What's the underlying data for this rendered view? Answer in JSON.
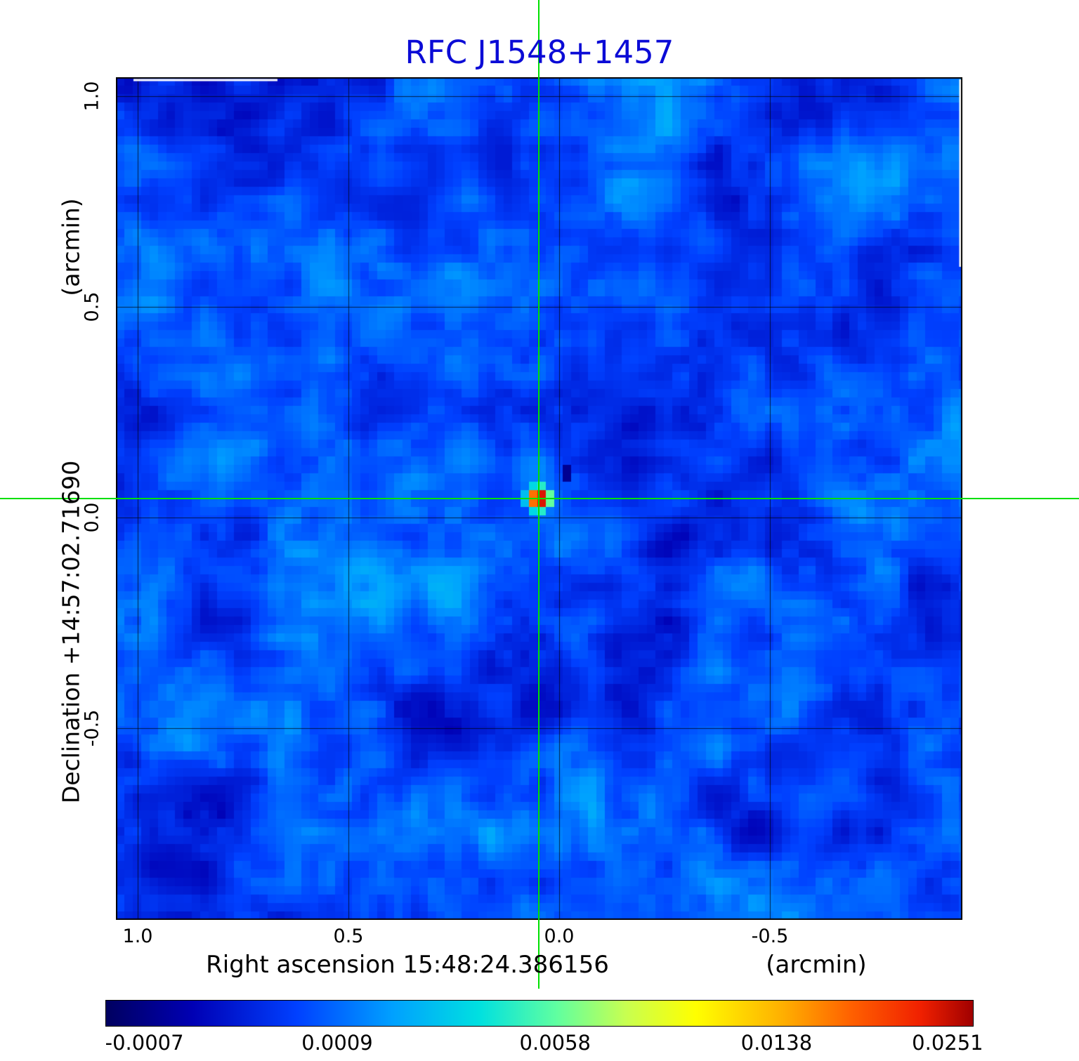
{
  "chart_data": {
    "type": "heatmap",
    "title": "RFC J1548+1457",
    "title_color": "#0b0bd6",
    "x_axis": {
      "label": "Right ascension  15:48:24.386156",
      "unit": "(arcmin)",
      "ticks": [
        "1.0",
        "0.5",
        "0.0",
        "-0.5"
      ],
      "range_arcmin": [
        1.05,
        -0.96
      ]
    },
    "y_axis": {
      "label": "Declination  +14:57:02.71690",
      "unit": "(arcmin)",
      "ticks": [
        "1.0",
        "0.5",
        "0.0",
        "-0.5"
      ],
      "range_arcmin": [
        -0.96,
        1.04
      ]
    },
    "crosshair": {
      "color": "#00e000",
      "x_arcmin": 0.0,
      "y_arcmin": 0.0
    },
    "source": {
      "x_arcmin": 0.04,
      "y_arcmin": 0.04,
      "peak_value": 0.0251,
      "shape": "compact gaussian point source at field center"
    },
    "noise": {
      "background_level": 0.0009,
      "seed": 1548
    },
    "grid": {
      "color": "#000000",
      "x_lines_arcmin": [
        1.0,
        0.5,
        0.0,
        -0.5
      ],
      "y_lines_arcmin": [
        1.0,
        0.5,
        0.0,
        -0.5
      ]
    },
    "colorbar": {
      "min": -0.0007,
      "max": 0.0251,
      "scale": "power",
      "tick_labels": [
        "-0.0007",
        "0.0009",
        "0.0058",
        "0.0138",
        "0.0251"
      ],
      "tick_positions": [
        0.045,
        0.267,
        0.518,
        0.773,
        0.97
      ],
      "gradient": [
        {
          "pos": 0.0,
          "color": "#000060"
        },
        {
          "pos": 0.1,
          "color": "#0000b4"
        },
        {
          "pos": 0.22,
          "color": "#0040ff"
        },
        {
          "pos": 0.33,
          "color": "#00a0ff"
        },
        {
          "pos": 0.43,
          "color": "#00e0e0"
        },
        {
          "pos": 0.52,
          "color": "#60ffa0"
        },
        {
          "pos": 0.6,
          "color": "#c8ff50"
        },
        {
          "pos": 0.68,
          "color": "#ffff00"
        },
        {
          "pos": 0.78,
          "color": "#ffb000"
        },
        {
          "pos": 0.86,
          "color": "#ff6000"
        },
        {
          "pos": 0.94,
          "color": "#f02000"
        },
        {
          "pos": 1.0,
          "color": "#a00000"
        }
      ]
    }
  }
}
